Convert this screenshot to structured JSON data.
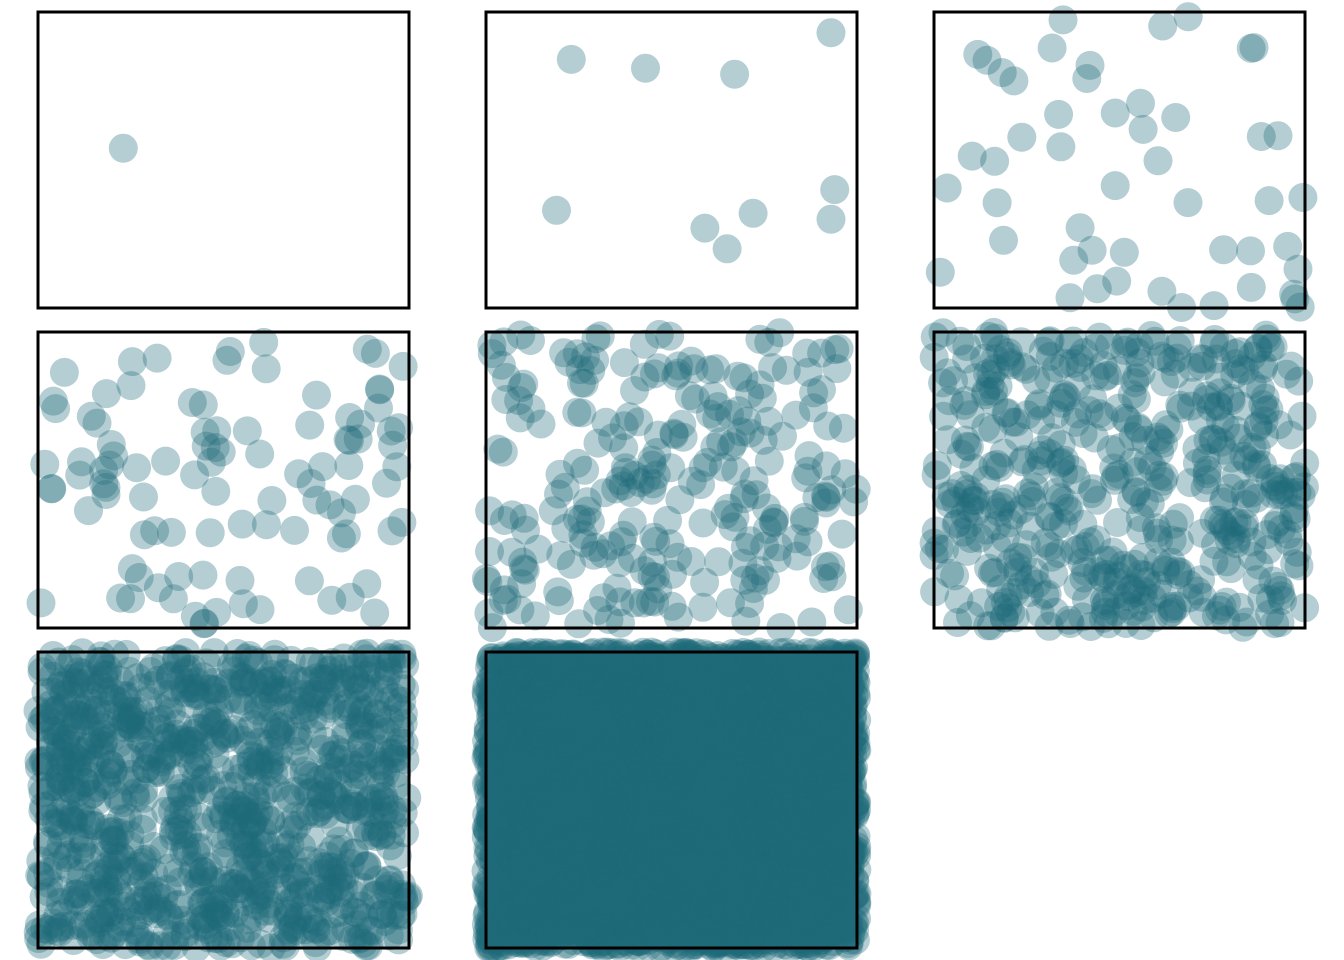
{
  "figure": {
    "background": "#ffffff",
    "point_color": "#1f6b78",
    "point_opacity": 0.33,
    "frame_color": "#000000"
  },
  "chart_data": [
    {
      "type": "scatter",
      "title": "",
      "xlabel": "",
      "ylabel": "",
      "xlim": [
        0,
        1
      ],
      "ylim": [
        0,
        1
      ],
      "grid": false,
      "n_points": 1,
      "sample_points": [
        [
          0.23,
          0.54
        ]
      ]
    },
    {
      "type": "scatter",
      "title": "",
      "xlabel": "",
      "ylabel": "",
      "xlim": [
        0,
        1
      ],
      "ylim": [
        0,
        1
      ],
      "grid": false,
      "n_points": 10,
      "sample_points": [
        [
          0.23,
          0.84
        ],
        [
          0.43,
          0.81
        ],
        [
          0.67,
          0.79
        ],
        [
          0.93,
          0.93
        ],
        [
          0.19,
          0.33
        ],
        [
          0.59,
          0.27
        ],
        [
          0.65,
          0.2
        ],
        [
          0.72,
          0.32
        ],
        [
          0.94,
          0.4
        ],
        [
          0.93,
          0.3
        ]
      ]
    },
    {
      "type": "scatter",
      "title": "",
      "xlabel": "",
      "ylabel": "",
      "xlim": [
        0,
        1
      ],
      "ylim": [
        0,
        1
      ],
      "grid": false,
      "n_points": 50
    },
    {
      "type": "scatter",
      "title": "",
      "xlabel": "",
      "ylabel": "",
      "xlim": [
        0,
        1
      ],
      "ylim": [
        0,
        1
      ],
      "grid": false,
      "n_points": 100
    },
    {
      "type": "scatter",
      "title": "",
      "xlabel": "",
      "ylabel": "",
      "xlim": [
        0,
        1
      ],
      "ylim": [
        0,
        1
      ],
      "grid": false,
      "n_points": 250
    },
    {
      "type": "scatter",
      "title": "",
      "xlabel": "",
      "ylabel": "",
      "xlim": [
        0,
        1
      ],
      "ylim": [
        0,
        1
      ],
      "grid": false,
      "n_points": 500
    },
    {
      "type": "scatter",
      "title": "",
      "xlabel": "",
      "ylabel": "",
      "xlim": [
        0,
        1
      ],
      "ylim": [
        0,
        1
      ],
      "grid": false,
      "n_points": 1000
    },
    {
      "type": "scatter",
      "title": "",
      "xlabel": "",
      "ylabel": "",
      "xlim": [
        0,
        1
      ],
      "ylim": [
        0,
        1
      ],
      "grid": false,
      "n_points": 5000
    }
  ]
}
